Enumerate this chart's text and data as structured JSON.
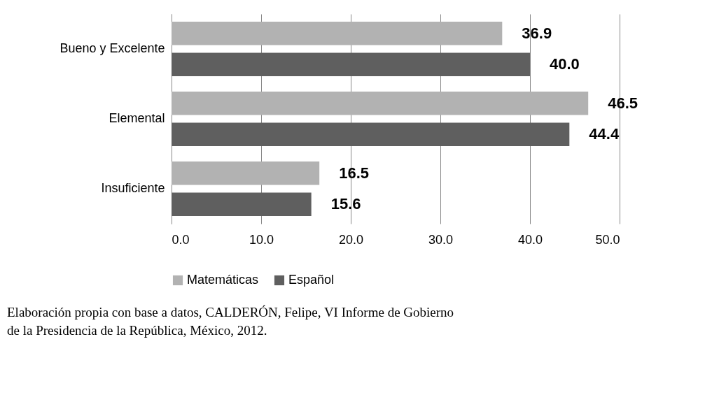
{
  "chart_data": {
    "type": "bar",
    "orientation": "horizontal",
    "categories": [
      "Bueno y Excelente",
      "Elemental",
      "Insuficiente"
    ],
    "series": [
      {
        "name": "Matemáticas",
        "color": "#b2b2b2",
        "values": [
          36.9,
          46.5,
          16.5
        ],
        "value_labels": [
          "36.9",
          "46.5",
          "16.5"
        ]
      },
      {
        "name": "Español",
        "color": "#5f5f5f",
        "values": [
          40.0,
          44.4,
          15.6
        ],
        "value_labels": [
          "40.0",
          "44.4",
          "15.6"
        ]
      }
    ],
    "xlim": [
      0,
      50
    ],
    "xticks": [
      {
        "value": 0,
        "label": "0.0"
      },
      {
        "value": 10,
        "label": "10.0"
      },
      {
        "value": 20,
        "label": "20.0"
      },
      {
        "value": 30,
        "label": "30.0"
      },
      {
        "value": 40,
        "label": "40.0"
      },
      {
        "value": 50,
        "label": "50.0"
      }
    ],
    "grid": "x",
    "legend": "bottom",
    "annotations": [
      "Elaboración propia con base a datos, CALDERÓN, Felipe, VI Informe de Gobierno\nde la Presidencia de la República, México, 2012."
    ]
  }
}
